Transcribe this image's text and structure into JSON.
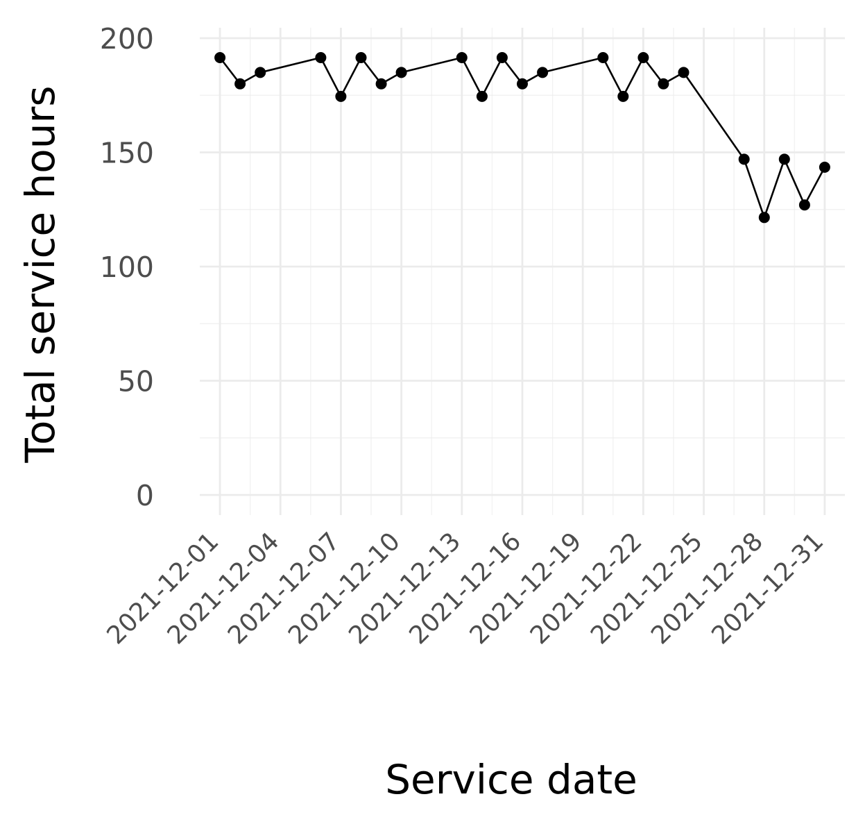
{
  "chart_data": {
    "type": "line",
    "title": "",
    "xlabel": "Service date",
    "ylabel": "Total service hours",
    "x_ticks": [
      "2021-12-01",
      "2021-12-04",
      "2021-12-07",
      "2021-12-10",
      "2021-12-13",
      "2021-12-16",
      "2021-12-19",
      "2021-12-22",
      "2021-12-25",
      "2021-12-28",
      "2021-12-31"
    ],
    "y_ticks": [
      0,
      50,
      100,
      150,
      200
    ],
    "xlim": [
      "2021-11-30",
      "2022-01-01"
    ],
    "ylim": [
      -9,
      200
    ],
    "grid": true,
    "legend": "none",
    "line_color": "#000000",
    "grid_color": "#ebebeb",
    "series": [
      {
        "x": [
          "2021-12-01",
          "2021-12-02",
          "2021-12-03",
          "2021-12-06",
          "2021-12-07",
          "2021-12-08",
          "2021-12-09",
          "2021-12-10",
          "2021-12-13",
          "2021-12-14",
          "2021-12-15",
          "2021-12-16",
          "2021-12-17",
          "2021-12-20",
          "2021-12-21",
          "2021-12-22",
          "2021-12-23",
          "2021-12-24",
          "2021-12-27",
          "2021-12-28",
          "2021-12-29",
          "2021-12-30",
          "2021-12-31"
        ],
        "y": [
          191.5,
          180,
          185,
          191.5,
          174.5,
          191.5,
          180,
          185,
          191.5,
          174.5,
          191.5,
          180,
          185,
          191.5,
          174.5,
          191.5,
          180,
          185,
          147,
          121.5,
          147,
          127,
          143.5
        ]
      }
    ]
  }
}
